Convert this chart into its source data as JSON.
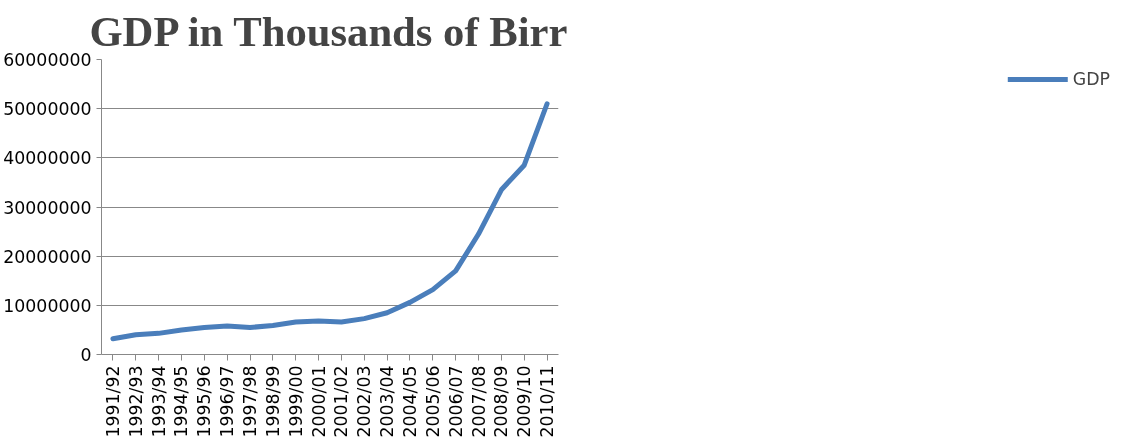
{
  "chart_data": {
    "type": "line",
    "title": "GDP in Thousands of Birr",
    "categories": [
      "1991/92",
      "1992/93",
      "1993/94",
      "1994/95",
      "1995/96",
      "1996/97",
      "1997/98",
      "1998/99",
      "1999/00",
      "2000/01",
      "2001/02",
      "2002/03",
      "2003/04",
      "2004/05",
      "2005/06",
      "2006/07",
      "2007/08",
      "2008/09",
      "2009/10",
      "2010/11"
    ],
    "series": [
      {
        "name": "GDP",
        "color": "#4a7ebb",
        "values": [
          3200000,
          4000000,
          4300000,
          5000000,
          5500000,
          5800000,
          5500000,
          5900000,
          6600000,
          6800000,
          6600000,
          7300000,
          8500000,
          10600000,
          13200000,
          17000000,
          24500000,
          33500000,
          38500000,
          51000000
        ]
      }
    ],
    "ylim": [
      0,
      60000000
    ],
    "yticks": [
      0,
      10000000,
      20000000,
      30000000,
      40000000,
      50000000,
      60000000
    ],
    "grid": "y",
    "legend": "right",
    "marker": "none",
    "line_style": "solid"
  }
}
